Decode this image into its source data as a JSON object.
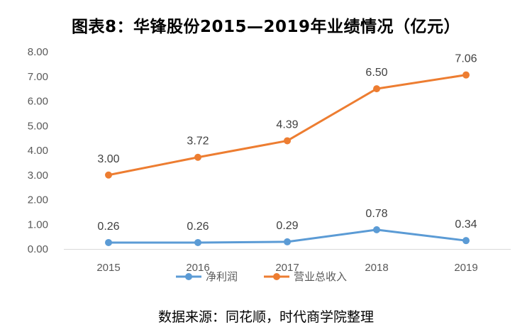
{
  "chart_data": {
    "type": "line",
    "title": "图表8：华锋股份2015—2019年业绩情况（亿元）",
    "categories": [
      "2015",
      "2016",
      "2017",
      "2018",
      "2019"
    ],
    "ylim": [
      0,
      8
    ],
    "yticks": [
      "0.00",
      "1.00",
      "2.00",
      "3.00",
      "4.00",
      "5.00",
      "6.00",
      "7.00",
      "8.00"
    ],
    "grid": false,
    "legend_position": "bottom",
    "series": [
      {
        "name": "净利润",
        "values": [
          0.26,
          0.26,
          0.29,
          0.78,
          0.34
        ],
        "labels": [
          "0.26",
          "0.26",
          "0.29",
          "0.78",
          "0.34"
        ],
        "color": "#5B9BD5"
      },
      {
        "name": "营业总收入",
        "values": [
          3.0,
          3.72,
          4.39,
          6.5,
          7.06
        ],
        "labels": [
          "3.00",
          "3.72",
          "4.39",
          "6.50",
          "7.06"
        ],
        "color": "#ED7D31"
      }
    ]
  },
  "source": "数据来源：同花顺，时代商学院整理"
}
